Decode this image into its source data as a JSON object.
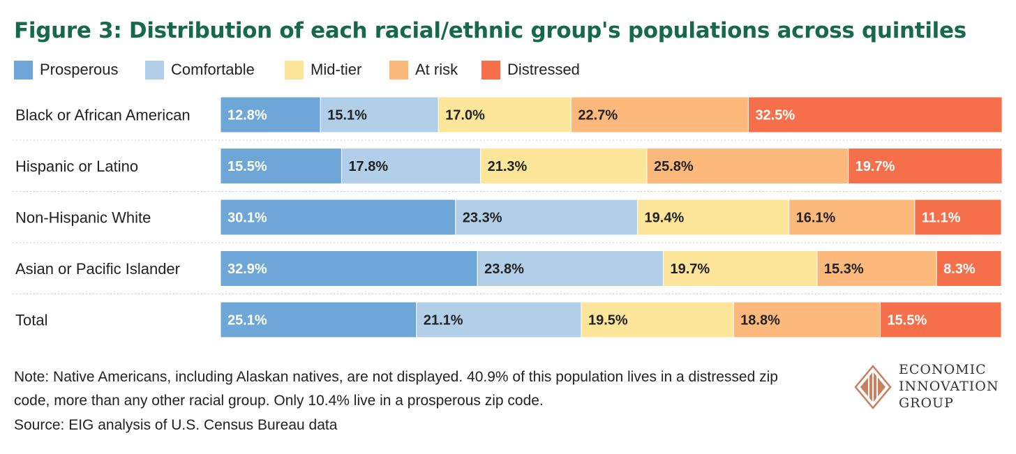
{
  "chart_data": {
    "type": "bar",
    "orientation": "horizontal",
    "stacked": true,
    "title": "Figure 3: Distribution of each racial/ethnic group's populations across quintiles",
    "categories": [
      "Black or African American",
      "Hispanic or Latino",
      "Non-Hispanic White",
      "Asian or Pacific Islander",
      "Total"
    ],
    "series": [
      {
        "name": "Prosperous",
        "color": "#6ea6d7",
        "label_color": "#ffffff",
        "values": [
          12.8,
          15.5,
          30.1,
          32.9,
          25.1
        ]
      },
      {
        "name": "Comfortable",
        "color": "#b2cfe9",
        "label_color": "#222222",
        "values": [
          15.1,
          17.8,
          23.3,
          23.8,
          21.1
        ]
      },
      {
        "name": "Mid-tier",
        "color": "#fde699",
        "label_color": "#222222",
        "values": [
          17.0,
          21.3,
          19.4,
          19.7,
          19.5
        ]
      },
      {
        "name": "At risk",
        "color": "#fdb97b",
        "label_color": "#222222",
        "values": [
          22.7,
          25.8,
          16.1,
          15.3,
          18.8
        ]
      },
      {
        "name": "Distressed",
        "color": "#f5704a",
        "label_color": "#ffffff",
        "values": [
          32.5,
          19.7,
          11.1,
          8.3,
          15.5
        ]
      }
    ],
    "value_suffix": "%",
    "xlim": [
      0,
      100
    ],
    "xlabel": "",
    "ylabel": "",
    "grid": false,
    "legend": "top-left"
  },
  "note": "Note: Native Americans, including Alaskan natives, are not displayed. 40.9% of this population lives in a distressed zip code, more than any other racial group. Only 10.4% live in a prosperous zip code.",
  "source": "Source: EIG analysis of U.S. Census Bureau data",
  "logo": {
    "line1": "ECONOMIC",
    "line2": "INNOVATION",
    "line3": "GROUP",
    "color": "#c9805f"
  }
}
